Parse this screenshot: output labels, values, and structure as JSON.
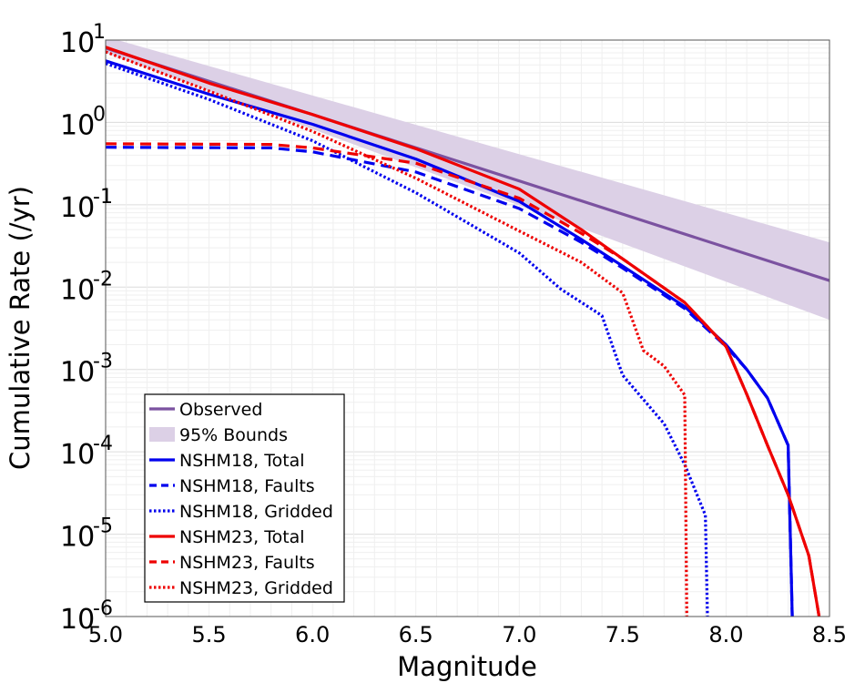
{
  "chart_data": {
    "type": "line",
    "title": "",
    "xlabel": "Magnitude",
    "ylabel": "Cumulative Rate (/yr)",
    "x_scale": "linear",
    "y_scale": "log",
    "xlim": [
      5.0,
      8.5
    ],
    "ylim": [
      1e-06,
      10
    ],
    "x_ticks": [
      {
        "value": 5.0,
        "label": "5.0"
      },
      {
        "value": 5.5,
        "label": "5.5"
      },
      {
        "value": 6.0,
        "label": "6.0"
      },
      {
        "value": 6.5,
        "label": "6.5"
      },
      {
        "value": 7.0,
        "label": "7.0"
      },
      {
        "value": 7.5,
        "label": "7.5"
      },
      {
        "value": 8.0,
        "label": "8.0"
      },
      {
        "value": 8.5,
        "label": "8.5"
      }
    ],
    "y_ticks": [
      {
        "value": 10,
        "base": "10",
        "exp": "1"
      },
      {
        "value": 1,
        "base": "10",
        "exp": "0"
      },
      {
        "value": 0.1,
        "base": "10",
        "exp": "-1"
      },
      {
        "value": 0.01,
        "base": "10",
        "exp": "-2"
      },
      {
        "value": 0.001,
        "base": "10",
        "exp": "-3"
      },
      {
        "value": 0.0001,
        "base": "10",
        "exp": "-4"
      },
      {
        "value": 1e-05,
        "base": "10",
        "exp": "-5"
      },
      {
        "value": 1e-06,
        "base": "10",
        "exp": "-6"
      }
    ],
    "grid": true,
    "legend_position": "lower-left",
    "bounds": {
      "name": "95% Bounds",
      "color": "#dcd0e6",
      "x": [
        5.0,
        8.5
      ],
      "lower": [
        7.0,
        0.004
      ],
      "upper": [
        11.0,
        0.035
      ]
    },
    "series": [
      {
        "name": "Observed",
        "color": "#7b52a0",
        "style": "solid",
        "x": [
          5.0,
          8.5
        ],
        "y": [
          8.0,
          0.012
        ]
      },
      {
        "name": "NSHM18, Total",
        "color": "#0000ee",
        "style": "solid",
        "x": [
          5.0,
          5.5,
          6.0,
          6.5,
          7.0,
          7.3,
          7.5,
          7.8,
          8.0,
          8.1,
          8.2,
          8.3,
          8.32
        ],
        "y": [
          5.6,
          2.2,
          0.95,
          0.36,
          0.11,
          0.038,
          0.018,
          0.0058,
          0.002,
          0.001,
          0.00045,
          0.00012,
          1e-06
        ]
      },
      {
        "name": "NSHM18, Faults",
        "color": "#0000ee",
        "style": "dashed",
        "x": [
          5.0,
          5.8,
          6.0,
          6.5,
          7.0,
          7.3,
          7.5,
          7.8,
          8.0,
          8.1,
          8.2,
          8.3,
          8.32
        ],
        "y": [
          0.5,
          0.49,
          0.44,
          0.25,
          0.09,
          0.035,
          0.017,
          0.0055,
          0.0019,
          0.001,
          0.00045,
          0.00012,
          1e-06
        ]
      },
      {
        "name": "NSHM18, Gridded",
        "color": "#0000ee",
        "style": "dotted",
        "x": [
          5.0,
          5.5,
          6.0,
          6.5,
          7.0,
          7.2,
          7.4,
          7.5,
          7.7,
          7.8,
          7.9,
          7.91
        ],
        "y": [
          5.2,
          1.9,
          0.6,
          0.14,
          0.026,
          0.0095,
          0.0045,
          0.00085,
          0.00022,
          7e-05,
          1.7e-05,
          1e-06
        ]
      },
      {
        "name": "NSHM23, Total",
        "color": "#ee0000",
        "style": "solid",
        "x": [
          5.0,
          5.5,
          6.0,
          6.5,
          7.0,
          7.3,
          7.5,
          7.8,
          8.0,
          8.1,
          8.2,
          8.3,
          8.4,
          8.45
        ],
        "y": [
          8.2,
          3.0,
          1.25,
          0.48,
          0.155,
          0.05,
          0.022,
          0.0065,
          0.0019,
          0.0005,
          0.00012,
          3e-05,
          5.5e-06,
          1e-06
        ]
      },
      {
        "name": "NSHM23, Faults",
        "color": "#ee0000",
        "style": "dashed",
        "x": [
          5.0,
          5.8,
          6.0,
          6.5,
          7.0,
          7.3,
          7.5,
          7.8,
          8.0,
          8.1,
          8.2,
          8.3,
          8.4,
          8.45
        ],
        "y": [
          0.55,
          0.54,
          0.49,
          0.32,
          0.12,
          0.045,
          0.022,
          0.0065,
          0.0019,
          0.0005,
          0.00012,
          3e-05,
          5.5e-06,
          1e-06
        ]
      },
      {
        "name": "NSHM23, Gridded",
        "color": "#ee0000",
        "style": "dotted",
        "x": [
          5.0,
          5.5,
          6.0,
          6.5,
          7.0,
          7.3,
          7.5,
          7.6,
          7.7,
          7.8,
          7.81
        ],
        "y": [
          7.2,
          2.4,
          0.78,
          0.21,
          0.048,
          0.02,
          0.0085,
          0.0017,
          0.0011,
          0.00049,
          1e-06
        ]
      }
    ]
  }
}
